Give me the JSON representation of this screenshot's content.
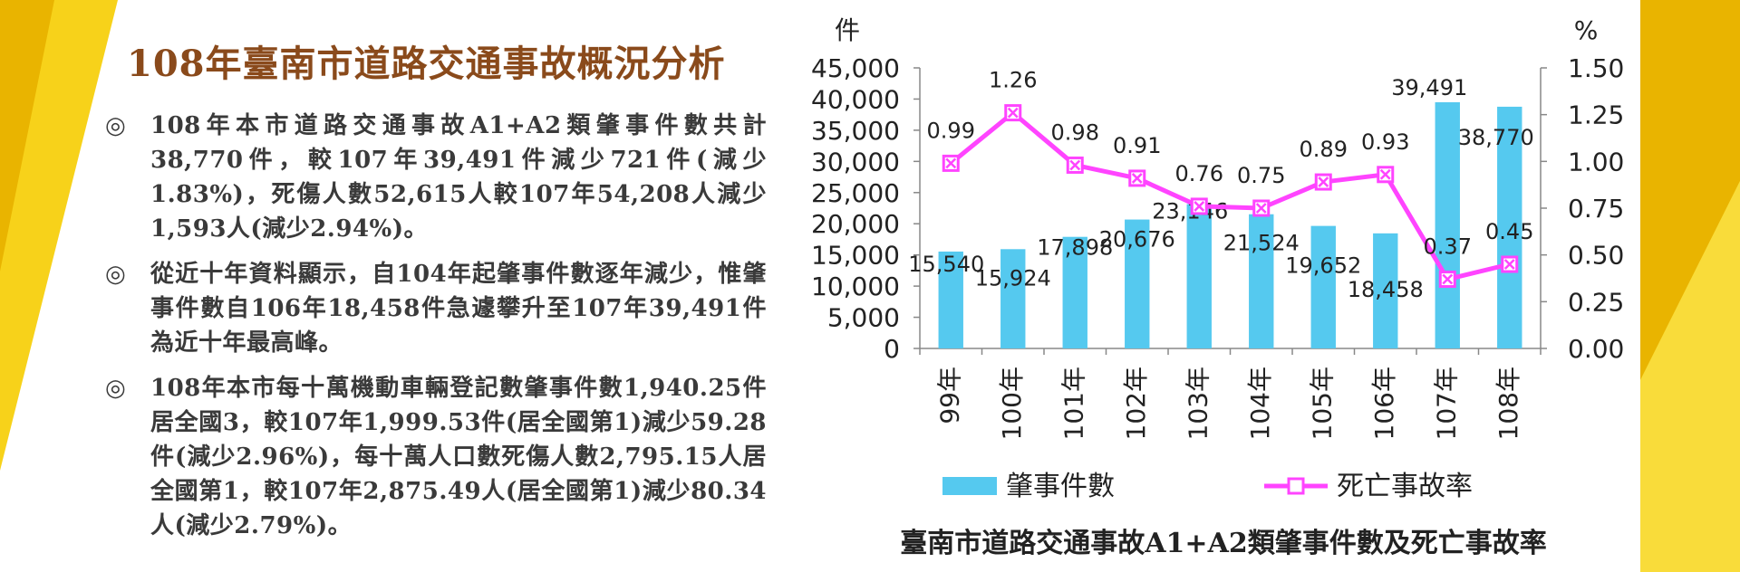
{
  "page": {
    "title": "108年臺南市道路交通事故概況分析",
    "bullet_mark": "◎",
    "bullets": [
      "108年本市道路交通事故A1+A2類肇事件數共計38,770件，較107年39,491件減少721件(減少1.83%)，死傷人數52,615人較107年54,208人減少1,593人(減少2.94%)。",
      "從近十年資料顯示，自104年起肇事件數逐年減少，惟肇事件數自106年18,458件急遽攀升至107年39,491件為近十年最高峰。",
      "108年本市每十萬機動車輛登記數肇事件數1,940.25件居全國3，較107年1,999.53件(居全國第1)減少59.28件(減少2.96%)，每十萬人口數死傷人數2,795.15人居全國第1，較107年2,875.49人(居全國第1)減少80.34人(減少2.79%)。"
    ],
    "chart_caption": "臺南市道路交通事故A1+A2類肇事件數及死亡事故率"
  },
  "colors": {
    "title": "#8a4a1b",
    "bar": "#55c9ef",
    "line": "#ff44ff",
    "deco_yellow": "#f7d21a",
    "deco_gold": "#e9b400"
  },
  "chart_data": {
    "type": "bar+line",
    "categories": [
      "99年",
      "100年",
      "101年",
      "102年",
      "103年",
      "104年",
      "105年",
      "106年",
      "107年",
      "108年"
    ],
    "series": [
      {
        "name": "肇事件數",
        "type": "bar",
        "axis": "left",
        "values": [
          15540,
          15924,
          17898,
          20676,
          23146,
          21524,
          19652,
          18458,
          39491,
          38770
        ],
        "labels": [
          "15,540",
          "15,924",
          "17,898",
          "20,676",
          "23,146",
          "21,524",
          "19,652",
          "18,458",
          "39,491",
          "38,770"
        ]
      },
      {
        "name": "死亡事故率",
        "type": "line",
        "axis": "right",
        "values": [
          0.99,
          1.26,
          0.98,
          0.91,
          0.76,
          0.75,
          0.89,
          0.93,
          0.37,
          0.45
        ],
        "labels": [
          "0.99",
          "1.26",
          "0.98",
          "0.91",
          "0.76",
          "0.75",
          "0.89",
          "0.93",
          "0.37",
          "0.45"
        ]
      }
    ],
    "y_left": {
      "unit": "件",
      "range": [
        0,
        45000
      ],
      "ticks": [
        "0",
        "5,000",
        "10,000",
        "15,000",
        "20,000",
        "25,000",
        "30,000",
        "35,000",
        "40,000",
        "45,000"
      ]
    },
    "y_right": {
      "unit": "%",
      "range": [
        0,
        1.5
      ],
      "ticks": [
        "0.00",
        "0.25",
        "0.50",
        "0.75",
        "1.00",
        "1.25",
        "1.50"
      ]
    },
    "grid": false,
    "legend_position": "bottom"
  }
}
